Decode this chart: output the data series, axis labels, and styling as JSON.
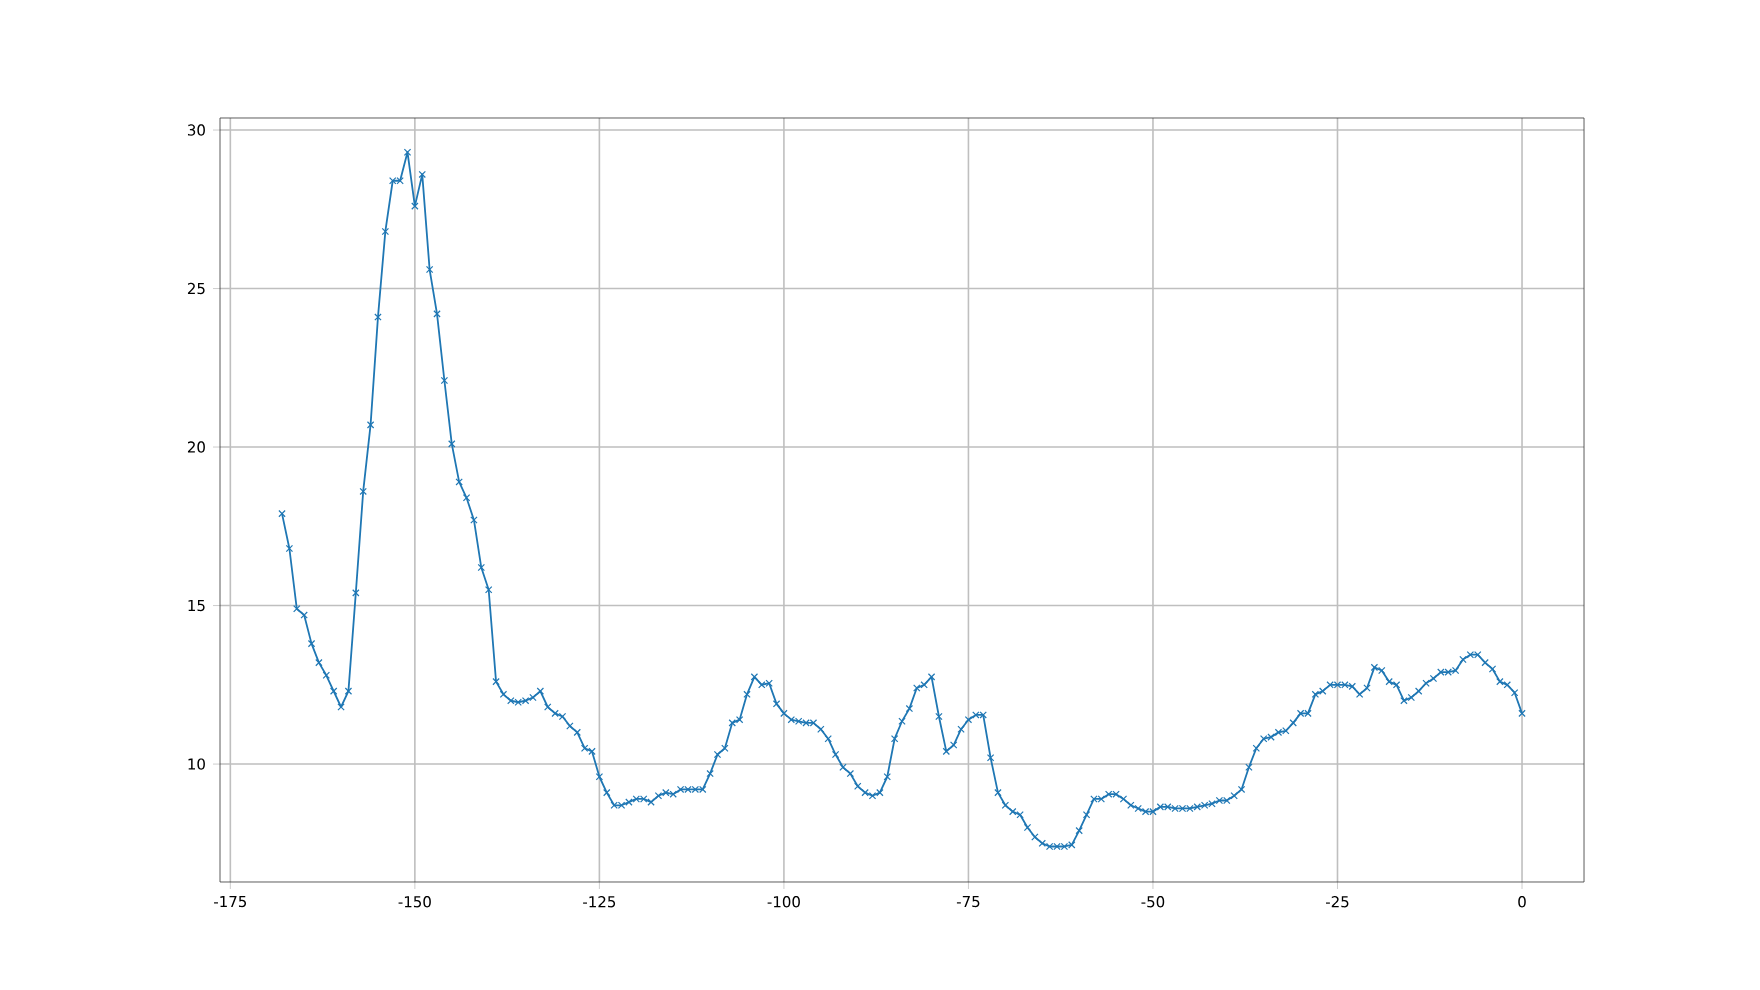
{
  "chart_data": {
    "type": "line",
    "marker": "cross",
    "line_style": "solid",
    "grid": true,
    "xlim": [
      -176.4,
      8.4
    ],
    "ylim": [
      6.28,
      30.38
    ],
    "xticks": [
      -175,
      -150,
      -125,
      -100,
      -75,
      -50,
      -25,
      0
    ],
    "yticks": [
      10,
      15,
      20,
      25,
      30
    ],
    "series": [
      {
        "color": "#1f77b4",
        "x": [
          -168,
          -167,
          -166,
          -165,
          -164,
          -163,
          -162,
          -161,
          -160,
          -159,
          -158,
          -157,
          -156,
          -155,
          -154,
          -153,
          -152,
          -151,
          -150,
          -149,
          -148,
          -147,
          -146,
          -145,
          -144,
          -143,
          -142,
          -141,
          -140,
          -139,
          -138,
          -137,
          -136,
          -135,
          -134,
          -133,
          -132,
          -131,
          -130,
          -129,
          -128,
          -127,
          -126,
          -125,
          -124,
          -123,
          -122,
          -121,
          -120,
          -119,
          -118,
          -117,
          -116,
          -115,
          -114,
          -113,
          -112,
          -111,
          -110,
          -109,
          -108,
          -107,
          -106,
          -105,
          -104,
          -103,
          -102,
          -101,
          -100,
          -99,
          -98,
          -97,
          -96,
          -95,
          -94,
          -93,
          -92,
          -91,
          -90,
          -89,
          -88,
          -87,
          -86,
          -85,
          -84,
          -83,
          -82,
          -81,
          -80,
          -79,
          -78,
          -77,
          -76,
          -75,
          -74,
          -73,
          -72,
          -71,
          -70,
          -69,
          -68,
          -67,
          -66,
          -65,
          -64,
          -63,
          -62,
          -61,
          -60,
          -59,
          -58,
          -57,
          -56,
          -55,
          -54,
          -53,
          -52,
          -51,
          -50,
          -49,
          -48,
          -47,
          -46,
          -45,
          -44,
          -43,
          -42,
          -41,
          -40,
          -39,
          -38,
          -37,
          -36,
          -35,
          -34,
          -33,
          -32,
          -31,
          -30,
          -29,
          -28,
          -27,
          -26,
          -25,
          -24,
          -23,
          -22,
          -21,
          -20,
          -19,
          -18,
          -17,
          -16,
          -15,
          -14,
          -13,
          -12,
          -11,
          -10,
          -9,
          -8,
          -7,
          -6,
          -5,
          -4,
          -3,
          -2,
          -1,
          0
        ],
        "values": [
          17.9,
          16.8,
          14.9,
          14.7,
          13.8,
          13.2,
          12.8,
          12.3,
          11.8,
          12.3,
          15.4,
          18.6,
          20.7,
          24.1,
          26.8,
          28.4,
          28.4,
          29.3,
          27.6,
          28.6,
          25.6,
          24.2,
          22.1,
          20.1,
          18.9,
          18.4,
          17.7,
          16.2,
          15.5,
          12.6,
          12.2,
          12.0,
          11.95,
          12.0,
          12.1,
          12.3,
          11.8,
          11.6,
          11.5,
          11.2,
          11.0,
          10.5,
          10.4,
          9.6,
          9.1,
          8.7,
          8.7,
          8.8,
          8.9,
          8.9,
          8.8,
          9.0,
          9.1,
          9.05,
          9.2,
          9.2,
          9.2,
          9.2,
          9.7,
          10.3,
          10.5,
          11.3,
          11.4,
          12.2,
          12.75,
          12.5,
          12.55,
          11.9,
          11.6,
          11.4,
          11.35,
          11.3,
          11.3,
          11.1,
          10.8,
          10.3,
          9.9,
          9.7,
          9.3,
          9.1,
          9.0,
          9.1,
          9.6,
          10.8,
          11.35,
          11.75,
          12.4,
          12.5,
          12.75,
          11.5,
          10.4,
          10.6,
          11.1,
          11.4,
          11.55,
          11.55,
          10.2,
          9.1,
          8.7,
          8.5,
          8.4,
          8.0,
          7.7,
          7.5,
          7.4,
          7.4,
          7.4,
          7.45,
          7.9,
          8.4,
          8.9,
          8.9,
          9.05,
          9.05,
          8.9,
          8.7,
          8.6,
          8.5,
          8.5,
          8.65,
          8.65,
          8.6,
          8.6,
          8.6,
          8.65,
          8.7,
          8.75,
          8.85,
          8.85,
          9.0,
          9.2,
          9.9,
          10.5,
          10.8,
          10.85,
          11.0,
          11.05,
          11.3,
          11.6,
          11.6,
          12.2,
          12.3,
          12.5,
          12.5,
          12.5,
          12.45,
          12.2,
          12.4,
          13.05,
          12.95,
          12.6,
          12.5,
          12.0,
          12.1,
          12.3,
          12.55,
          12.7,
          12.9,
          12.9,
          12.95,
          13.3,
          13.45,
          13.45,
          13.2,
          13.0,
          12.6,
          12.5,
          12.25,
          11.6
        ]
      }
    ]
  }
}
